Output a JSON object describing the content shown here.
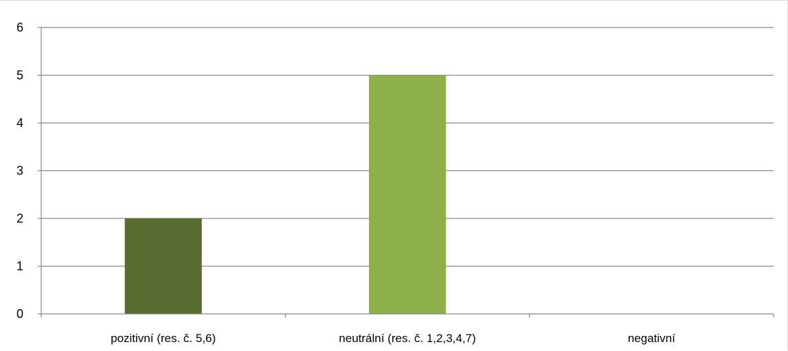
{
  "chart_data": {
    "type": "bar",
    "title": "",
    "xlabel": "",
    "ylabel": "",
    "categories": [
      "pozitivní (res. č. 5,6)",
      "neutrální (res. č. 1,2,3,4,7)",
      "negativní"
    ],
    "values": [
      2,
      5,
      0
    ],
    "colors": [
      "#556b2f",
      "#8db04a",
      "#8db04a"
    ],
    "ylim": [
      0,
      6
    ],
    "yticks": [
      "0",
      "1",
      "2",
      "3",
      "4",
      "5",
      "6"
    ],
    "grid": true,
    "legend": "none"
  }
}
